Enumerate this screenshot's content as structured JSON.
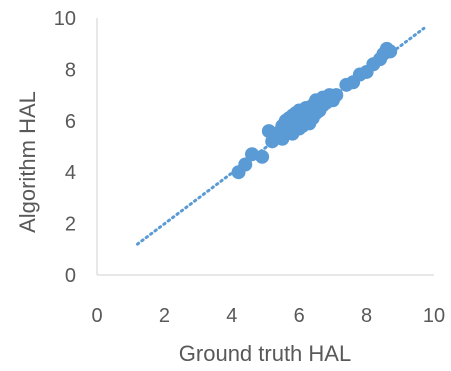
{
  "chart_data": {
    "type": "scatter",
    "title": "",
    "xlabel": "Ground truth HAL",
    "ylabel": "Algorithm HAL",
    "xlim": [
      0,
      10
    ],
    "ylim": [
      0,
      10
    ],
    "x_ticks": [
      "0",
      "2",
      "4",
      "6",
      "8",
      "10"
    ],
    "y_ticks": [
      "0",
      "2",
      "4",
      "6",
      "8",
      "10"
    ],
    "grid": false,
    "legend": "none",
    "marker_color": "#5B9BD5",
    "trendline": {
      "style": "dotted",
      "color": "#5B9BD5",
      "x": [
        1.2,
        9.7
      ],
      "y": [
        1.2,
        9.6
      ]
    },
    "series": [
      {
        "points": [
          [
            4.2,
            4.0
          ],
          [
            4.4,
            4.3
          ],
          [
            4.6,
            4.7
          ],
          [
            4.9,
            4.6
          ],
          [
            5.1,
            5.6
          ],
          [
            5.2,
            5.2
          ],
          [
            5.3,
            5.5
          ],
          [
            5.5,
            5.3
          ],
          [
            5.5,
            5.8
          ],
          [
            5.6,
            5.6
          ],
          [
            5.6,
            6.0
          ],
          [
            5.7,
            5.8
          ],
          [
            5.7,
            6.1
          ],
          [
            5.8,
            5.5
          ],
          [
            5.8,
            6.2
          ],
          [
            5.9,
            5.9
          ],
          [
            5.9,
            6.3
          ],
          [
            6.0,
            5.7
          ],
          [
            6.0,
            6.0
          ],
          [
            6.0,
            6.4
          ],
          [
            6.1,
            5.8
          ],
          [
            6.1,
            6.2
          ],
          [
            6.2,
            6.0
          ],
          [
            6.2,
            6.5
          ],
          [
            6.3,
            5.9
          ],
          [
            6.3,
            6.3
          ],
          [
            6.4,
            6.1
          ],
          [
            6.4,
            6.6
          ],
          [
            6.5,
            6.3
          ],
          [
            6.5,
            6.8
          ],
          [
            6.6,
            6.4
          ],
          [
            6.7,
            6.6
          ],
          [
            6.7,
            6.9
          ],
          [
            6.8,
            6.7
          ],
          [
            6.9,
            7.0
          ],
          [
            7.0,
            6.8
          ],
          [
            7.1,
            7.0
          ],
          [
            7.4,
            7.4
          ],
          [
            7.6,
            7.5
          ],
          [
            7.8,
            7.8
          ],
          [
            8.0,
            7.9
          ],
          [
            8.2,
            8.2
          ],
          [
            8.4,
            8.4
          ],
          [
            8.5,
            8.6
          ],
          [
            8.6,
            8.8
          ],
          [
            8.7,
            8.7
          ]
        ]
      }
    ]
  }
}
